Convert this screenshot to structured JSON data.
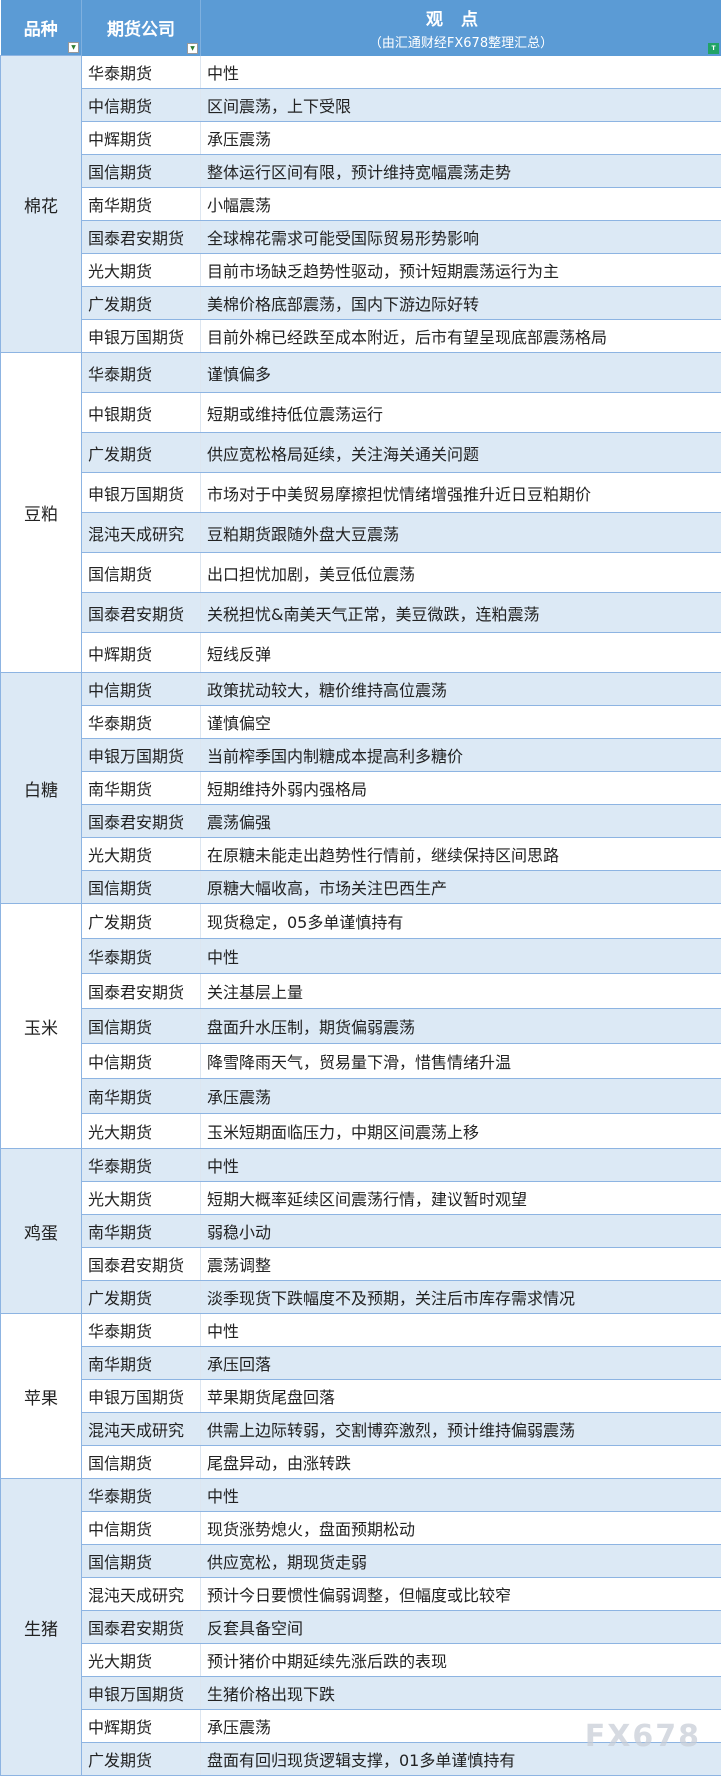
{
  "header": {
    "col1": "品种",
    "col2": "期货公司",
    "col3": "观点",
    "col3_sub": "（由汇通财经FX678整理汇总）"
  },
  "watermark": "FX678",
  "groups": [
    {
      "name": "棉花",
      "rows": [
        [
          "华泰期货",
          "中性"
        ],
        [
          "中信期货",
          "区间震荡，上下受限"
        ],
        [
          "中辉期货",
          "承压震荡"
        ],
        [
          "国信期货",
          "整体运行区间有限，预计维持宽幅震荡走势"
        ],
        [
          "南华期货",
          "小幅震荡"
        ],
        [
          "国泰君安期货",
          "全球棉花需求可能受国际贸易形势影响"
        ],
        [
          "光大期货",
          "目前市场缺乏趋势性驱动，预计短期震荡运行为主"
        ],
        [
          "广发期货",
          "美棉价格底部震荡，国内下游边际好转"
        ],
        [
          "申银万国期货",
          "目前外棉已经跌至成本附近，后市有望呈现底部震荡格局"
        ]
      ]
    },
    {
      "name": "豆粕",
      "rows": [
        [
          "华泰期货",
          "谨慎偏多"
        ],
        [
          "中银期货",
          "短期或维持低位震荡运行"
        ],
        [
          "广发期货",
          "供应宽松格局延续，关注海关通关问题"
        ],
        [
          "申银万国期货",
          "市场对于中美贸易摩擦担忧情绪增强推升近日豆粕期价"
        ],
        [
          "混沌天成研究",
          "豆粕期货跟随外盘大豆震荡"
        ],
        [
          "国信期货",
          "出口担忧加剧，美豆低位震荡"
        ],
        [
          "国泰君安期货",
          "关税担忧&南美天气正常，美豆微跌，连粕震荡"
        ],
        [
          "中辉期货",
          "短线反弹"
        ]
      ]
    },
    {
      "name": "白糖",
      "rows": [
        [
          "中信期货",
          "政策扰动较大，糖价维持高位震荡"
        ],
        [
          "华泰期货",
          "谨慎偏空"
        ],
        [
          "申银万国期货",
          "当前榨季国内制糖成本提高利多糖价"
        ],
        [
          "南华期货",
          "短期维持外弱内强格局"
        ],
        [
          "国泰君安期货",
          "震荡偏强"
        ],
        [
          "光大期货",
          "在原糖未能走出趋势性行情前，继续保持区间思路"
        ],
        [
          "国信期货",
          "原糖大幅收高，市场关注巴西生产"
        ]
      ]
    },
    {
      "name": "玉米",
      "rows": [
        [
          "广发期货",
          "现货稳定，05多单谨慎持有"
        ],
        [
          "华泰期货",
          "中性"
        ],
        [
          "国泰君安期货",
          "关注基层上量"
        ],
        [
          "国信期货",
          "盘面升水压制，期货偏弱震荡"
        ],
        [
          "中信期货",
          "降雪降雨天气，贸易量下滑，惜售情绪升温"
        ],
        [
          "南华期货",
          "承压震荡"
        ],
        [
          "光大期货",
          "玉米短期面临压力，中期区间震荡上移"
        ]
      ]
    },
    {
      "name": "鸡蛋",
      "rows": [
        [
          "华泰期货",
          "中性"
        ],
        [
          "光大期货",
          "短期大概率延续区间震荡行情，建议暂时观望"
        ],
        [
          "南华期货",
          "弱稳小动"
        ],
        [
          "国泰君安期货",
          "震荡调整"
        ],
        [
          "广发期货",
          "淡季现货下跌幅度不及预期，关注后市库存需求情况"
        ]
      ]
    },
    {
      "name": "苹果",
      "rows": [
        [
          "华泰期货",
          "中性"
        ],
        [
          "南华期货",
          "承压回落"
        ],
        [
          "申银万国期货",
          "苹果期货尾盘回落"
        ],
        [
          "混沌天成研究",
          "供需上边际转弱，交割博弈激烈，预计维持偏弱震荡"
        ],
        [
          "国信期货",
          "尾盘异动，由涨转跌"
        ]
      ]
    },
    {
      "name": "生猪",
      "rows": [
        [
          "华泰期货",
          "中性"
        ],
        [
          "中信期货",
          "现货涨势熄火，盘面预期松动"
        ],
        [
          "国信期货",
          "供应宽松，期现货走弱"
        ],
        [
          "混沌天成研究",
          "预计今日要惯性偏弱调整，但幅度或比较窄"
        ],
        [
          "国泰君安期货",
          "反套具备空间"
        ],
        [
          "光大期货",
          "预计猪价中期延续先涨后跌的表现"
        ],
        [
          "申银万国期货",
          "生猪价格出现下跌"
        ],
        [
          "中辉期货",
          "承压震荡"
        ],
        [
          "广发期货",
          "盘面有回归现货逻辑支撑，01多单谨慎持有"
        ]
      ]
    }
  ]
}
